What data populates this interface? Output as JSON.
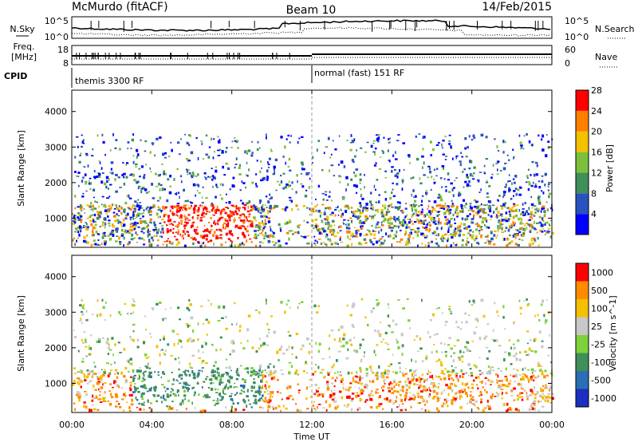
{
  "header": {
    "station": "McMurdo (fitACF)",
    "beam": "Beam 10",
    "date": "14/Feb/2015"
  },
  "noise_panel": {
    "left_label": "N.Sky",
    "right_label": "N.Search",
    "left_ticks": [
      "10^5",
      "10^0"
    ],
    "right_ticks": [
      "10^5",
      "10^0"
    ]
  },
  "freq_panel": {
    "left_label_line1": "Freq.",
    "left_label_line2": "[MHz]",
    "right_label": "Nave",
    "left_ticks": [
      "18",
      "8"
    ],
    "right_ticks": [
      "60",
      "0"
    ]
  },
  "cpid": {
    "label": "CPID",
    "segments": [
      {
        "text": "themis 3300 RF",
        "start_hour": 0,
        "end_hour": 12
      },
      {
        "text": "normal (fast) 151 RF",
        "start_hour": 12,
        "end_hour": 24
      }
    ]
  },
  "power_panel": {
    "ylabel": "Slant Range [km]",
    "yticks": [
      "1000",
      "2000",
      "3000",
      "4000"
    ],
    "colorbar_label": "Power [dB]",
    "colorbar_ticks": [
      "4",
      "8",
      "12",
      "16",
      "20",
      "24",
      "28"
    ],
    "colors": [
      "#0000ff",
      "#2a52be",
      "#3f8f5a",
      "#7dbf3c",
      "#f4c000",
      "#ff7f00",
      "#ff0000"
    ]
  },
  "velocity_panel": {
    "ylabel": "Slant Range [km]",
    "yticks": [
      "1000",
      "2000",
      "3000",
      "4000"
    ],
    "colorbar_label": "Velocity [m s^-1]",
    "colorbar_ticks": [
      "1000",
      "500",
      "100",
      "25",
      "-25",
      "-100",
      "-500",
      "-1000"
    ],
    "colors": [
      "#1c2fbf",
      "#2a6fb5",
      "#3f8f5a",
      "#7dd23c",
      "#c8c8c8",
      "#f4c000",
      "#ff8c00",
      "#ff0000"
    ]
  },
  "xaxis": {
    "label": "Time UT",
    "ticks": [
      "00:00",
      "04:00",
      "08:00",
      "12:00",
      "16:00",
      "20:00",
      "00:00"
    ]
  },
  "chart_data": [
    {
      "type": "heatmap",
      "title": "",
      "xlabel": "Time UT",
      "ylabel": "Slant Range [km]",
      "xlim": [
        0,
        24
      ],
      "ylim": [
        180,
        4600
      ],
      "colorbar": "Power [dB]",
      "color_levels": [
        4,
        8,
        12,
        16,
        20,
        24,
        28
      ]
    },
    {
      "type": "heatmap",
      "title": "",
      "xlabel": "Time UT",
      "ylabel": "Slant Range [km]",
      "xlim": [
        0,
        24
      ],
      "ylim": [
        180,
        4600
      ],
      "colorbar": "Velocity [m s^-1]",
      "color_levels": [
        1000,
        500,
        100,
        25,
        -25,
        -100,
        -500,
        -1000
      ]
    }
  ]
}
